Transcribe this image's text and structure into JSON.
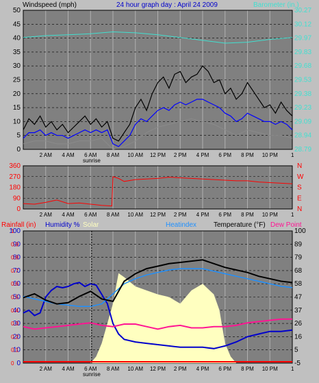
{
  "header": {
    "left_title": "Windspeed (mph)",
    "center_title": "24 hour graph day : April 24 2009",
    "right_title": "Barometer (in.)"
  },
  "colors": {
    "background": "#c0c0c0",
    "plot_bg": "#808080",
    "wind_avg": "#0000ff",
    "wind_gust": "#000000",
    "wind_low": "#8a8a8a",
    "barometer": "#40e0d0",
    "direction": "#ff0000",
    "humidity": "#0000cc",
    "heatindex": "#1e90ff",
    "temperature": "#000000",
    "dewpoint": "#ff1493",
    "solar": "#ffffc0",
    "rainfall": "#ff0000",
    "sunrise": "#000000"
  },
  "x_labels": [
    "2 AM",
    "4 AM",
    "6 AM",
    "8 AM",
    "10 AM",
    "12 PM",
    "2 PM",
    "4 PM",
    "6 PM",
    "8 PM",
    "10 PM"
  ],
  "sunrise_label": "sunrise",
  "chart_data": [
    {
      "type": "line",
      "panel": "wind-barometer",
      "x_unit": "hour of day",
      "xlim": [
        0,
        24
      ],
      "ylabel": "Windspeed (mph)",
      "ylim": [
        0,
        50
      ],
      "y_ticks": [
        0,
        5,
        10,
        15,
        20,
        25,
        30,
        35,
        40,
        45,
        50
      ],
      "y2label": "Barometer (in.)",
      "y2lim": [
        28.79,
        30.27
      ],
      "y2_ticks": [
        "28.79",
        "28.94",
        "29.09",
        "29.23",
        "29.38",
        "29.53",
        "29.68",
        "29.83",
        "29.97",
        "30.12",
        "30.27"
      ],
      "series": [
        {
          "key": "wind_gust",
          "x": [
            0,
            0.5,
            1,
            1.5,
            2,
            2.5,
            3,
            3.5,
            4,
            4.5,
            5,
            5.5,
            6,
            6.5,
            7,
            7.5,
            8,
            8.5,
            9,
            9.5,
            10,
            10.5,
            11,
            11.5,
            12,
            12.5,
            13,
            13.5,
            14,
            14.5,
            15,
            15.5,
            16,
            16.5,
            17,
            17.5,
            18,
            18.5,
            19,
            19.5,
            20,
            20.5,
            21,
            21.5,
            22,
            22.5,
            23,
            23.5,
            24
          ],
          "values": [
            7,
            11,
            9,
            12,
            8,
            10,
            7,
            9,
            6,
            8,
            10,
            12,
            9,
            11,
            8,
            10,
            4,
            3,
            6,
            9,
            15,
            18,
            14,
            20,
            24,
            26,
            22,
            27,
            28,
            24,
            26,
            27,
            30,
            28,
            24,
            25,
            20,
            22,
            18,
            20,
            24,
            21,
            18,
            15,
            16,
            13,
            17,
            14,
            12
          ]
        },
        {
          "key": "wind_avg",
          "x": [
            0,
            0.5,
            1,
            1.5,
            2,
            2.5,
            3,
            3.5,
            4,
            4.5,
            5,
            5.5,
            6,
            6.5,
            7,
            7.5,
            8,
            8.5,
            9,
            9.5,
            10,
            10.5,
            11,
            11.5,
            12,
            12.5,
            13,
            13.5,
            14,
            14.5,
            15,
            15.5,
            16,
            16.5,
            17,
            17.5,
            18,
            18.5,
            19,
            19.5,
            20,
            20.5,
            21,
            21.5,
            22,
            22.5,
            23,
            23.5,
            24
          ],
          "values": [
            4,
            6,
            6,
            7,
            5,
            6,
            5,
            5,
            4,
            5,
            6,
            7,
            6,
            7,
            6,
            7,
            2,
            1,
            3,
            5,
            9,
            11,
            10,
            12,
            14,
            15,
            14,
            16,
            17,
            16,
            17,
            18,
            18,
            17,
            16,
            15,
            13,
            12,
            10,
            11,
            13,
            12,
            11,
            10,
            10,
            9,
            10,
            9,
            7
          ]
        },
        {
          "key": "wind_low",
          "x": [
            0,
            1,
            2,
            3,
            4,
            5,
            6,
            7,
            8,
            9,
            10,
            11,
            12,
            13,
            14,
            15,
            16,
            17,
            18,
            19,
            20,
            21,
            22,
            23,
            24
          ],
          "values": [
            2,
            3,
            3,
            2,
            2,
            3,
            3,
            4,
            0,
            1,
            3,
            6,
            8,
            9,
            10,
            11,
            10,
            9,
            7,
            5,
            7,
            6,
            5,
            5,
            4
          ]
        },
        {
          "key": "barometer",
          "x": [
            0,
            2,
            4,
            6,
            8,
            10,
            12,
            14,
            16,
            18,
            20,
            22,
            24
          ],
          "values": [
            29.98,
            30.0,
            30.01,
            30.02,
            30.04,
            30.03,
            30.01,
            29.98,
            29.95,
            29.92,
            29.93,
            29.96,
            29.98
          ]
        }
      ]
    },
    {
      "type": "line",
      "panel": "wind-direction",
      "x_unit": "hour of day",
      "xlim": [
        0,
        24
      ],
      "ylim": [
        0,
        360
      ],
      "y_ticks": [
        0,
        90,
        180,
        270,
        360
      ],
      "y2_ticks": [
        "N",
        "E",
        "S",
        "W",
        "N"
      ],
      "series": [
        {
          "key": "direction",
          "x": [
            0,
            1,
            2,
            3,
            4,
            5,
            6,
            7,
            7.9,
            8.0,
            8.5,
            9,
            10,
            11,
            12,
            13,
            14,
            15,
            16,
            17,
            18,
            19,
            20,
            21,
            22,
            23,
            24
          ],
          "values": [
            45,
            40,
            55,
            75,
            45,
            50,
            40,
            30,
            25,
            270,
            255,
            230,
            245,
            250,
            255,
            265,
            260,
            255,
            250,
            245,
            240,
            235,
            235,
            225,
            220,
            215,
            210
          ]
        }
      ]
    },
    {
      "type": "line",
      "panel": "temperature-humidity",
      "x_unit": "hour of day",
      "xlim": [
        0,
        24
      ],
      "ylabel": "Rainfall (in) / Humidity % / Solar",
      "ylim": [
        0,
        100
      ],
      "y_ticks": [
        0,
        10,
        20,
        30,
        40,
        50,
        60,
        70,
        80,
        90,
        100
      ],
      "rain_ticks": [
        0,
        0.1,
        0.2,
        0.3,
        0.4,
        0.5,
        0.6,
        0.7,
        0.8,
        0.9,
        1
      ],
      "y2label": "Temperature (°F)",
      "y2lim": [
        -5,
        100
      ],
      "y2_ticks": [
        -5,
        5,
        16,
        26,
        37,
        47,
        58,
        68,
        79,
        89,
        100
      ],
      "legend": [
        {
          "key": "rainfall",
          "label": "Rainfall (in)"
        },
        {
          "key": "humidity",
          "label": "Humidity %"
        },
        {
          "key": "solar",
          "label": "Solar"
        },
        {
          "key": "heatindex",
          "label": "Heatindex"
        },
        {
          "key": "temperature",
          "label": "Temperature (°F)"
        },
        {
          "key": "dewpoint",
          "label": "Dew Point"
        }
      ],
      "series": [
        {
          "key": "solar",
          "x": [
            6,
            6.5,
            7,
            7.5,
            8,
            8.5,
            9,
            10,
            11,
            12,
            13,
            14,
            15,
            16,
            17,
            17.5,
            18,
            18.5,
            19
          ],
          "values": [
            0,
            5,
            15,
            30,
            45,
            68,
            65,
            58,
            55,
            52,
            50,
            45,
            55,
            60,
            52,
            40,
            15,
            5,
            0
          ]
        },
        {
          "key": "humidity",
          "x": [
            0,
            0.5,
            1,
            1.5,
            2,
            2.5,
            3,
            3.5,
            4,
            4.5,
            5,
            5.5,
            6,
            6.5,
            7,
            7.5,
            8,
            8.5,
            9,
            10,
            11,
            12,
            13,
            14,
            15,
            16,
            17,
            18,
            19,
            20,
            21,
            22,
            23,
            24
          ],
          "values": [
            38,
            40,
            36,
            38,
            50,
            55,
            58,
            57,
            58,
            60,
            61,
            58,
            60,
            59,
            52,
            45,
            30,
            22,
            18,
            16,
            15,
            14,
            13,
            12,
            12,
            12,
            11,
            13,
            16,
            20,
            22,
            24,
            24,
            25
          ]
        },
        {
          "key": "heatindex",
          "x": [
            0,
            1,
            2,
            3,
            4,
            5,
            6,
            7,
            8,
            9,
            10,
            11,
            12,
            13,
            14,
            15,
            16,
            17,
            18,
            19,
            20,
            21,
            22,
            23,
            24
          ],
          "values": [
            48,
            46,
            44,
            42,
            41,
            40,
            40,
            42,
            50,
            58,
            62,
            65,
            67,
            69,
            70,
            70,
            70,
            68,
            66,
            64,
            62,
            60,
            58,
            56,
            55
          ]
        },
        {
          "key": "temperature",
          "x": [
            0,
            1,
            2,
            3,
            4,
            5,
            6,
            7,
            8,
            9,
            10,
            11,
            12,
            13,
            14,
            15,
            16,
            17,
            18,
            19,
            20,
            21,
            22,
            23,
            24
          ],
          "values": [
            47,
            50,
            45,
            42,
            43,
            48,
            52,
            46,
            44,
            60,
            66,
            70,
            72,
            74,
            75,
            76,
            77,
            74,
            71,
            69,
            67,
            64,
            62,
            60,
            59
          ]
        },
        {
          "key": "dewpoint",
          "x": [
            0,
            1,
            2,
            3,
            4,
            5,
            6,
            7,
            8,
            9,
            10,
            11,
            12,
            13,
            14,
            15,
            16,
            17,
            18,
            19,
            20,
            21,
            22,
            23,
            24
          ],
          "values": [
            24,
            22,
            23,
            24,
            25,
            26,
            27,
            25,
            24,
            26,
            26,
            24,
            22,
            24,
            25,
            23,
            23,
            24,
            24,
            25,
            27,
            28,
            29,
            30,
            30
          ]
        },
        {
          "key": "rainfall",
          "x": [
            0,
            24
          ],
          "values": [
            0,
            0
          ]
        }
      ],
      "sunrise_hour": 6.1
    }
  ]
}
